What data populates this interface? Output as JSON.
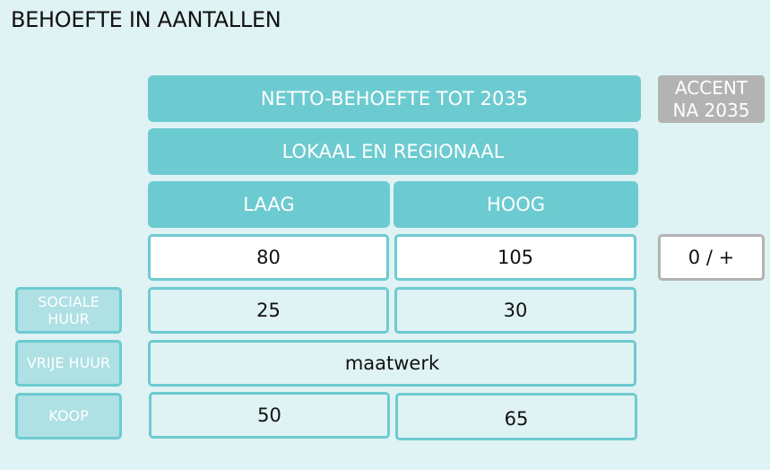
{
  "title": "BEHOEFTE IN AANTALLEN",
  "headers": {
    "main": "NETTO-BEHOEFTE TOT 2035",
    "sub": "LOKAAL EN REGIONAAL",
    "low": "LAAG",
    "high": "HOOG"
  },
  "accent": {
    "line1": "ACCENT",
    "line2": "NA 2035",
    "value": "0 / +"
  },
  "totals": {
    "low": "80",
    "high": "105"
  },
  "rows": [
    {
      "label_line1": "SOCIALE",
      "label_line2": "HUUR",
      "low": "25",
      "high": "30"
    },
    {
      "label": "VRIJE HUUR",
      "value": "maatwerk"
    },
    {
      "label": "KOOP",
      "low": "50",
      "high": "65"
    }
  ],
  "colors": {
    "background": "#dff2f4",
    "header": "#6ccbd0",
    "row_label": "#aee0e4",
    "accent": "#b3b3b3"
  }
}
